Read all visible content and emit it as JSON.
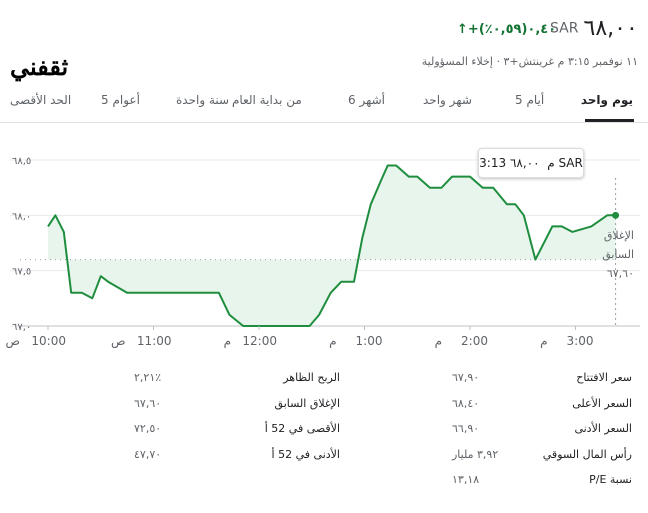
{
  "header": {
    "currency": "SAR",
    "price": "٦٨,٠٠",
    "change": "+٠,٤٠(٠,٥٩٪)",
    "change_arrow": "↑",
    "logo_text": "ثقفني",
    "meta": "١١ نوفمبر ٣:١٥ م غرينتش+٣ · إخلاء المسؤولية"
  },
  "tabs": [
    {
      "label": "يوم واحد",
      "active": true
    },
    {
      "label": "5 أيام"
    },
    {
      "label": "شهر واحد"
    },
    {
      "label": "6 أشهر"
    },
    {
      "label": "من بداية العام"
    },
    {
      "label": "سنة واحدة"
    },
    {
      "label": "5 أعوام"
    },
    {
      "label": "الحد الأقصى"
    }
  ],
  "tooltip": {
    "time": "3:13 م",
    "price": "٦٨,٠٠ SAR"
  },
  "prev_close": {
    "label_line1": "الإغلاق",
    "label_line2": "السابق",
    "value": "٦٧,٦٠"
  },
  "chart_data": {
    "type": "line",
    "accent_color": "#1e8e3e",
    "fill_color": "#e6f4ea",
    "y_ticks": [
      "٦٨,٥",
      "٦٨,٠",
      "٦٧,٥",
      "٦٧,٠"
    ],
    "ylim": [
      67.0,
      68.5
    ],
    "x_ticks": [
      {
        "time": "10:00",
        "ampm": "ص"
      },
      {
        "time": "11:00",
        "ampm": "ص"
      },
      {
        "time": "12:00",
        "ampm": "م"
      },
      {
        "time": "1:00",
        "ampm": "م"
      },
      {
        "time": "2:00",
        "ampm": "م"
      },
      {
        "time": "3:00",
        "ampm": "م"
      }
    ],
    "xlim": [
      9.8,
      15.5
    ],
    "prev_close": 67.6,
    "x": [
      10.0,
      10.07,
      10.15,
      10.22,
      10.32,
      10.42,
      10.5,
      10.57,
      10.75,
      11.0,
      11.3,
      11.62,
      11.72,
      11.85,
      12.0,
      12.2,
      12.3,
      12.4,
      12.48,
      12.57,
      12.68,
      12.78,
      12.9,
      12.98,
      13.06,
      13.15,
      13.22,
      13.3,
      13.42,
      13.5,
      13.62,
      13.73,
      13.83,
      14.0,
      14.12,
      14.22,
      14.35,
      14.43,
      14.51,
      14.62,
      14.78,
      14.87,
      14.97,
      15.15,
      15.3,
      15.38
    ],
    "y": [
      67.9,
      68.0,
      67.85,
      67.3,
      67.3,
      67.25,
      67.45,
      67.4,
      67.3,
      67.3,
      67.3,
      67.3,
      67.1,
      67.0,
      67.0,
      67.0,
      67.0,
      67.0,
      67.0,
      67.1,
      67.3,
      67.4,
      67.4,
      67.8,
      68.1,
      68.3,
      68.45,
      68.45,
      68.35,
      68.35,
      68.25,
      68.25,
      68.35,
      68.35,
      68.25,
      68.25,
      68.1,
      68.1,
      68.0,
      67.6,
      67.9,
      67.9,
      67.85,
      67.9,
      68.0,
      68.0
    ]
  },
  "stats": {
    "right": [
      {
        "label": "سعر الافتتاح",
        "value": "٦٧,٩٠"
      },
      {
        "label": "السعر الأعلى",
        "value": "٦٨,٤٠"
      },
      {
        "label": "السعر الأدنى",
        "value": "٦٦,٩٠"
      },
      {
        "label": "رأس المال السوقي",
        "value": "٣,٩٢ مليار"
      },
      {
        "label": "نسبة P/E",
        "value": "١٣,١٨"
      }
    ],
    "left": [
      {
        "label": "الربح الظاهر",
        "value": "٢,٢١٪"
      },
      {
        "label": "الإغلاق السابق",
        "value": "٦٧,٦٠"
      },
      {
        "label": "الأقصى في 52 أ",
        "value": "٧٢,٥٠"
      },
      {
        "label": "الأدنى في 52 أ",
        "value": "٤٧,٧٠"
      }
    ]
  }
}
